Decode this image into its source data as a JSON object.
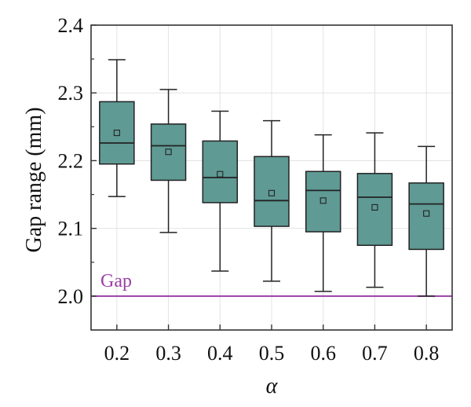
{
  "chart_data": {
    "type": "box",
    "xlabel": "α",
    "ylabel": "Gap range (mm)",
    "ylim": [
      1.95,
      2.4
    ],
    "yticks": [
      "2.0",
      "2.1",
      "2.2",
      "2.3",
      "2.4"
    ],
    "categories": [
      "0.2",
      "0.3",
      "0.4",
      "0.5",
      "0.6",
      "0.7",
      "0.8"
    ],
    "grid": true,
    "box_color": "#5f9a94",
    "reference_line": {
      "label": "Gap",
      "value": 2.0,
      "color": "#9b3fa8"
    },
    "boxes": [
      {
        "x": "0.2",
        "min": 2.147,
        "q1": 2.195,
        "median": 2.226,
        "mean": 2.241,
        "q3": 2.287,
        "max": 2.349
      },
      {
        "x": "0.3",
        "min": 2.094,
        "q1": 2.171,
        "median": 2.222,
        "mean": 2.213,
        "q3": 2.254,
        "max": 2.305
      },
      {
        "x": "0.4",
        "min": 2.037,
        "q1": 2.138,
        "median": 2.175,
        "mean": 2.18,
        "q3": 2.229,
        "max": 2.273
      },
      {
        "x": "0.5",
        "min": 2.022,
        "q1": 2.103,
        "median": 2.141,
        "mean": 2.152,
        "q3": 2.206,
        "max": 2.259
      },
      {
        "x": "0.6",
        "min": 2.007,
        "q1": 2.095,
        "median": 2.156,
        "mean": 2.141,
        "q3": 2.184,
        "max": 2.238
      },
      {
        "x": "0.7",
        "min": 2.013,
        "q1": 2.075,
        "median": 2.146,
        "mean": 2.131,
        "q3": 2.181,
        "max": 2.241
      },
      {
        "x": "0.8",
        "min": 2.0,
        "q1": 2.069,
        "median": 2.136,
        "mean": 2.122,
        "q3": 2.167,
        "max": 2.221
      }
    ]
  }
}
